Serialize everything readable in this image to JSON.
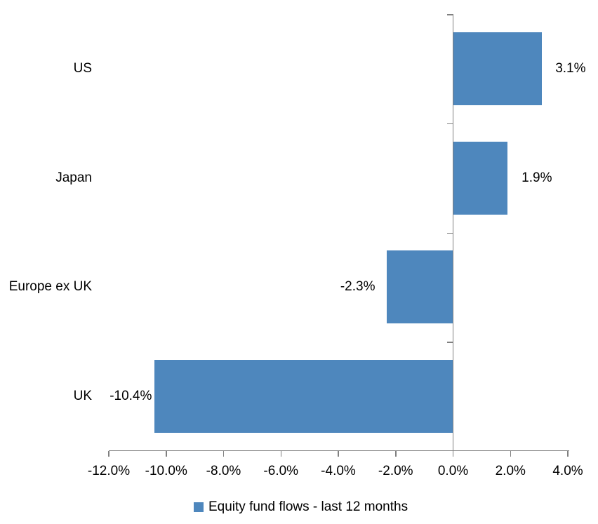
{
  "chart_data": {
    "type": "bar",
    "orientation": "horizontal",
    "title": "",
    "categories": [
      "US",
      "Japan",
      "Europe ex UK",
      "UK"
    ],
    "series": [
      {
        "name": "Equity fund flows - last 12 months",
        "values": [
          3.1,
          1.9,
          -2.3,
          -10.4
        ]
      }
    ],
    "value_labels": [
      "3.1%",
      "1.9%",
      "-2.3%",
      "-10.4%"
    ],
    "x_axis": {
      "min": -12,
      "max": 4,
      "tick_step": 2,
      "tick_labels": [
        "-12.0%",
        "-10.0%",
        "-8.0%",
        "-6.0%",
        "-4.0%",
        "-2.0%",
        "0.0%",
        "2.0%",
        "4.0%"
      ]
    },
    "grid": false,
    "legend": {
      "position": "bottom",
      "label": "Equity fund flows - last 12 months"
    },
    "colors": {
      "bar": "#4E87BD",
      "axis": "#808080",
      "text": "#000000",
      "background": "#FFFFFF"
    }
  }
}
